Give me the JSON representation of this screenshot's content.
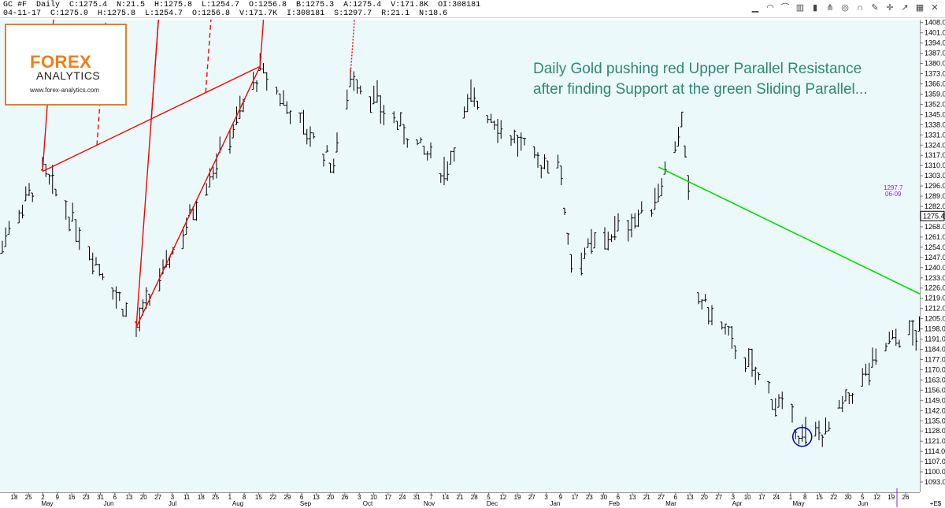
{
  "header": {
    "line1": "GC #F  Daily  C:1275.4  N:21.5  H:1275.8  L:1254.7  O:1256.8  B:1275.3  A:1275.4  V:171.8K  OI:308181",
    "line2": "04-11-17  C:1275.0  H:1275.8  L:1254.7  O:1256.8  V:171.7K  I:308181  S:1297.7  R:21.1  N:18.6",
    "toolbar_icons": [
      "signal-icon",
      "rainbow-icon",
      "arc-icon",
      "bars-icon",
      "candle-icon",
      "pitchfork-icon",
      "target-icon",
      "magnet-icon",
      "pencil-icon",
      "crosshair-icon",
      "arrow-icon",
      "grid-icon",
      "close-icon"
    ]
  },
  "logo": {
    "brand": "FOREX",
    "sub": "ANALYTICS",
    "url": "www.forex-analytics.com",
    "brand_color": "#f07d1b"
  },
  "annotation": {
    "line1": "Daily Gold pushing red Upper Parallel Resistance",
    "line2": "after finding Support at the green Sliding Parallel..."
  },
  "price_marker": {
    "value": "1275.4"
  },
  "side_note": {
    "value": "1297.7",
    "date": "06-09"
  },
  "colors": {
    "background": "#ecf9fb",
    "bars": "#000000",
    "pitchfork": "#ff0000",
    "sliding_parallel": "#00dd00",
    "circle": "#0000aa",
    "annotation": "#2e8a6e"
  },
  "chart_data": {
    "type": "ohlc",
    "title": "GC #F Daily",
    "ylim": [
      1086,
      1410
    ],
    "y_ticks": [
      "1408.0",
      "1401.0",
      "1394.0",
      "1387.0",
      "1380.0",
      "1373.0",
      "1366.0",
      "1359.0",
      "1352.0",
      "1345.0",
      "1338.0",
      "1331.0",
      "1324.0",
      "1317.0",
      "1310.0",
      "1303.0",
      "1296.0",
      "1289.0",
      "1282.0",
      "1275.0",
      "1268.0",
      "1261.0",
      "1254.0",
      "1247.0",
      "1240.0",
      "1233.0",
      "1226.0",
      "1219.0",
      "1212.0",
      "1205.0",
      "1198.0",
      "1191.0",
      "1184.0",
      "1177.0",
      "1170.0",
      "1163.0",
      "1156.0",
      "1149.0",
      "1142.0",
      "1135.0",
      "1128.0",
      "1121.0",
      "1114.0",
      "1107.0",
      "1100.0",
      "1093.0"
    ],
    "x_day_ticks": [
      "18",
      "25",
      "2",
      "9",
      "16",
      "23",
      "31",
      "6",
      "13",
      "20",
      "27",
      "3",
      "11",
      "18",
      "25",
      "1",
      "8",
      "15",
      "22",
      "29",
      "6",
      "13",
      "20",
      "26",
      "3",
      "10",
      "17",
      "24",
      "31",
      "7",
      "14",
      "21",
      "28",
      "5",
      "12",
      "19",
      "27",
      "3",
      "9",
      "17",
      "23",
      "30",
      "6",
      "13",
      "21",
      "27",
      "6",
      "13",
      "20",
      "27",
      "3",
      "10",
      "17",
      "24",
      "1",
      "8",
      "15",
      "22",
      "30",
      "5",
      "12",
      "19",
      "26"
    ],
    "x_month_labels": [
      "May",
      "Jun",
      "Jul",
      "Aug",
      "Sep",
      "Oct",
      "Nov",
      "Dec",
      "Jan",
      "Feb",
      "Mar",
      "Apr",
      "May",
      "Jun"
    ],
    "right_edge_label": "+E$",
    "swing_points": [
      {
        "date": "2016-05-02",
        "price": 1306
      },
      {
        "date": "2016-05-30",
        "price": 1199
      },
      {
        "date": "2016-07-06",
        "price": 1375
      },
      {
        "date": "2016-07-28",
        "price": 1310
      },
      {
        "date": "2016-08-02",
        "price": 1372
      },
      {
        "date": "2016-08-30",
        "price": 1305
      },
      {
        "date": "2016-09-07",
        "price": 1357
      },
      {
        "date": "2016-09-28",
        "price": 1310
      },
      {
        "date": "2016-10-03",
        "price": 1317
      },
      {
        "date": "2016-10-07",
        "price": 1245
      },
      {
        "date": "2016-10-31",
        "price": 1281
      },
      {
        "date": "2016-11-09",
        "price": 1338
      },
      {
        "date": "2016-11-14",
        "price": 1220
      },
      {
        "date": "2016-12-15",
        "price": 1124
      },
      {
        "date": "2016-12-22",
        "price": 1128
      },
      {
        "date": "2017-01-10",
        "price": 1190
      },
      {
        "date": "2017-01-30",
        "price": 1203
      },
      {
        "date": "2017-02-27",
        "price": 1264
      },
      {
        "date": "2017-03-15",
        "price": 1196
      },
      {
        "date": "2017-03-24",
        "price": 1247
      },
      {
        "date": "2017-04-11",
        "price": 1275
      }
    ],
    "pitchfork": {
      "pivots": [
        {
          "date": "2016-05-30",
          "price": 1199
        },
        {
          "date": "2016-07-06",
          "price": 1378
        },
        {
          "date": "2016-05-02",
          "price": 1306
        }
      ],
      "upper_parallel_dashed_start": {
        "date": "2016-08-02",
        "price": 1372
      }
    },
    "sliding_parallel": {
      "start": {
        "date": "2016-11-02",
        "price": 1309
      },
      "end_price_at_right": 1222
    }
  }
}
